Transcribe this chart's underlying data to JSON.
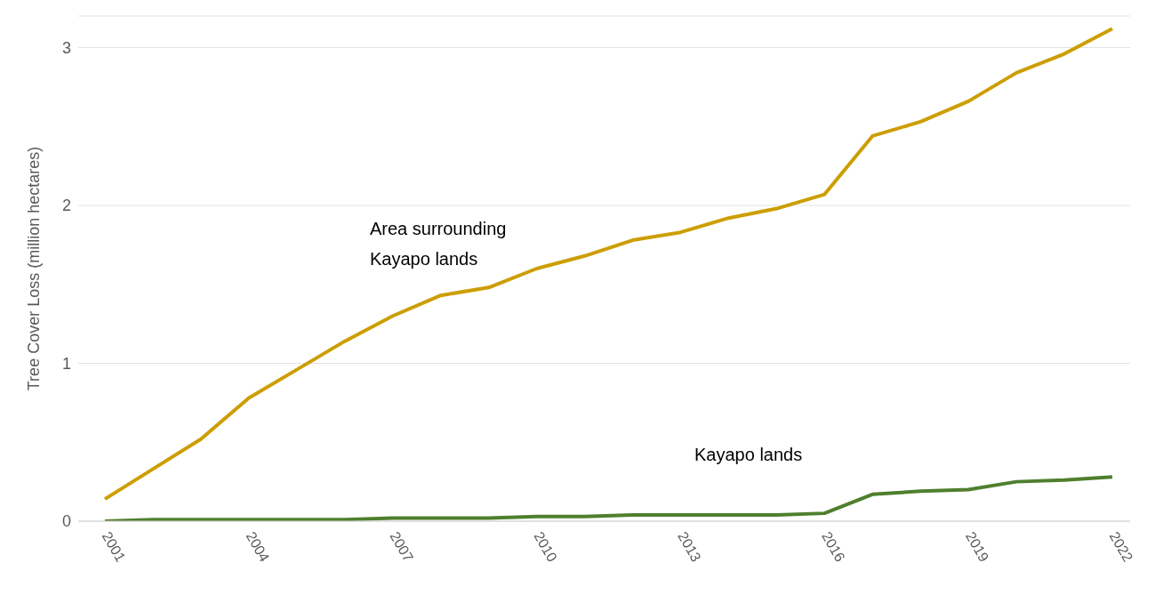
{
  "chart_data": {
    "type": "line",
    "ylabel": "Tree Cover Loss (million hectares)",
    "categories": [
      "2001",
      null,
      null,
      "2004",
      null,
      null,
      "2007",
      null,
      null,
      "2010",
      null,
      null,
      "2013",
      null,
      null,
      "2016",
      null,
      null,
      "2019",
      null,
      null,
      "2022"
    ],
    "series": [
      {
        "name": "Area surrounding Kayapo lands",
        "color": "#cc9e00",
        "values": [
          0.14,
          0.33,
          0.52,
          0.78,
          0.96,
          1.14,
          1.3,
          1.43,
          1.48,
          1.6,
          1.68,
          1.78,
          1.83,
          1.92,
          1.98,
          2.07,
          2.44,
          2.53,
          2.66,
          2.84,
          2.96,
          3.12
        ]
      },
      {
        "name": "Kayapo lands",
        "color": "#4f7f2e",
        "values": [
          0,
          0.01,
          0.01,
          0.01,
          0.01,
          0.01,
          0.02,
          0.02,
          0.02,
          0.03,
          0.03,
          0.04,
          0.04,
          0.04,
          0.04,
          0.05,
          0.17,
          0.19,
          0.2,
          0.25,
          0.26,
          0.28
        ]
      }
    ],
    "ylim": [
      0,
      3.2
    ],
    "yticks": [
      0,
      1,
      2,
      3
    ],
    "grid": "y",
    "marker": "none",
    "line_style": "solid"
  }
}
